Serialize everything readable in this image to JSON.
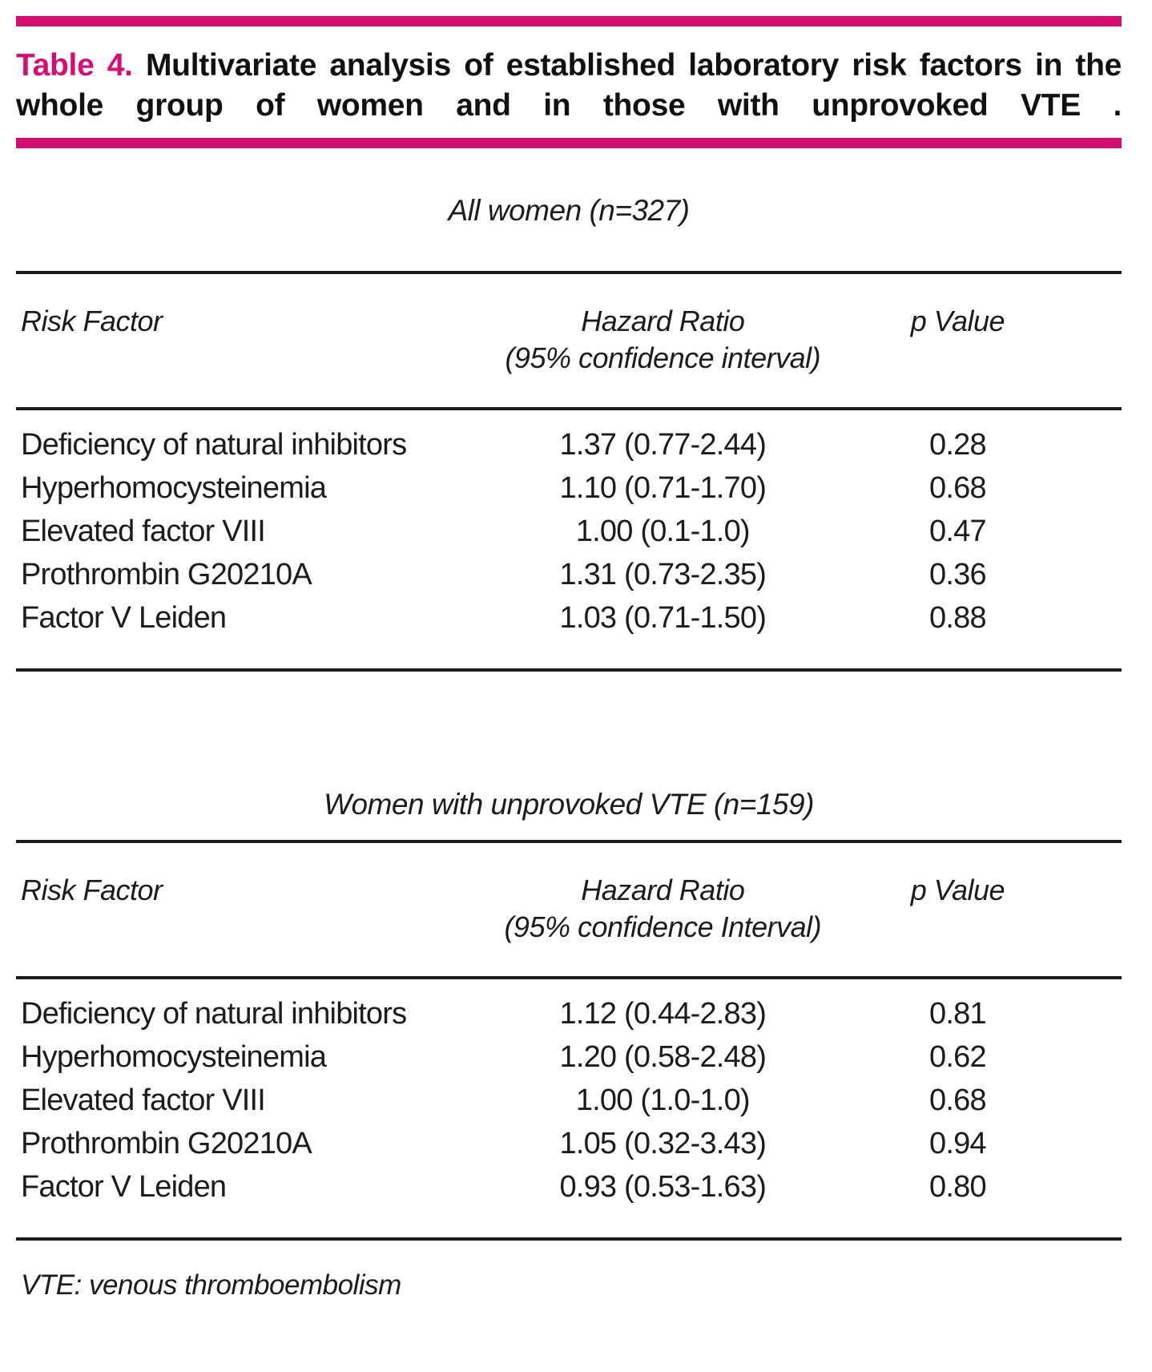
{
  "colors": {
    "accent": "#d40e73",
    "rule": "#1c1c1c"
  },
  "title": {
    "label": "Table 4.",
    "text": "Multivariate analysis of established laboratory risk factors in the whole group of women and in those with unprovoked VTE ."
  },
  "sections": [
    {
      "caption": "All women (n=327)",
      "columns": {
        "risk_factor": "Risk Factor",
        "hazard_ratio": "Hazard Ratio",
        "hazard_ratio_sub": "(95% confidence interval)",
        "p_value": "p Value"
      },
      "rows": [
        {
          "risk_factor": "Deficiency of natural inhibitors",
          "hazard_ratio": "1.37 (0.77-2.44)",
          "p_value": "0.28"
        },
        {
          "risk_factor": "Hyperhomocysteinemia",
          "hazard_ratio": "1.10 (0.71-1.70)",
          "p_value": "0.68"
        },
        {
          "risk_factor": "Elevated factor VIII",
          "hazard_ratio": "1.00 (0.1-1.0)",
          "p_value": "0.47"
        },
        {
          "risk_factor": "Prothrombin G20210A",
          "hazard_ratio": "1.31 (0.73-2.35)",
          "p_value": "0.36"
        },
        {
          "risk_factor": "Factor V Leiden",
          "hazard_ratio": "1.03 (0.71-1.50)",
          "p_value": "0.88"
        }
      ]
    },
    {
      "caption": "Women with unprovoked VTE (n=159)",
      "columns": {
        "risk_factor": "Risk Factor",
        "hazard_ratio": "Hazard Ratio",
        "hazard_ratio_sub": "(95% confidence Interval)",
        "p_value": "p Value"
      },
      "rows": [
        {
          "risk_factor": "Deficiency of natural inhibitors",
          "hazard_ratio": "1.12 (0.44-2.83)",
          "p_value": "0.81"
        },
        {
          "risk_factor": "Hyperhomocysteinemia",
          "hazard_ratio": "1.20 (0.58-2.48)",
          "p_value": "0.62"
        },
        {
          "risk_factor": "Elevated factor VIII",
          "hazard_ratio": "1.00 (1.0-1.0)",
          "p_value": "0.68"
        },
        {
          "risk_factor": "Prothrombin G20210A",
          "hazard_ratio": "1.05 (0.32-3.43)",
          "p_value": "0.94"
        },
        {
          "risk_factor": "Factor V Leiden",
          "hazard_ratio": "0.93 (0.53-1.63)",
          "p_value": "0.80"
        }
      ]
    }
  ],
  "footnote": "VTE: venous thromboembolism"
}
